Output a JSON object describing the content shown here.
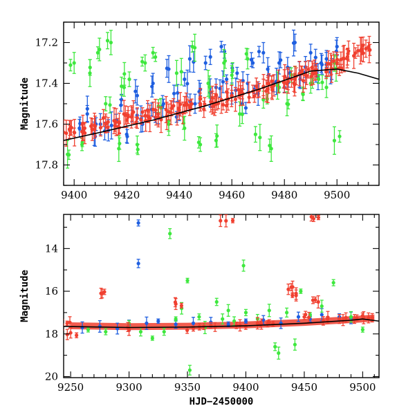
{
  "chart_data": [
    {
      "type": "scatter",
      "panel": "top",
      "xlabel": "",
      "ylabel": "Magnitude",
      "xlim": [
        9396,
        9516
      ],
      "ylim": [
        17.9,
        17.1
      ],
      "y_inverted": true,
      "xticks": [
        9400,
        9420,
        9440,
        9460,
        9480,
        9500
      ],
      "yticks": [
        17.2,
        17.4,
        17.6,
        17.8
      ],
      "series": [
        {
          "name": "blue",
          "color": "#1f5fe0",
          "points": [
            [
              9402,
              17.62
            ],
            [
              9405,
              17.55
            ],
            [
              9408,
              17.66
            ],
            [
              9410,
              17.6
            ],
            [
              9413,
              17.63
            ],
            [
              9416,
              17.58
            ],
            [
              9418,
              17.48
            ],
            [
              9420,
              17.65
            ],
            [
              9422,
              17.56
            ],
            [
              9424,
              17.46
            ],
            [
              9426,
              17.6
            ],
            [
              9428,
              17.53
            ],
            [
              9430,
              17.4
            ],
            [
              9432,
              17.57
            ],
            [
              9434,
              17.5
            ],
            [
              9436,
              17.33
            ],
            [
              9438,
              17.45
            ],
            [
              9440,
              17.55
            ],
            [
              9442,
              17.38
            ],
            [
              9444,
              17.28
            ],
            [
              9446,
              17.5
            ],
            [
              9448,
              17.43
            ],
            [
              9450,
              17.3
            ],
            [
              9452,
              17.47
            ],
            [
              9454,
              17.42
            ],
            [
              9456,
              17.22
            ],
            [
              9458,
              17.38
            ],
            [
              9460,
              17.45
            ],
            [
              9462,
              17.35
            ],
            [
              9464,
              17.5
            ],
            [
              9466,
              17.4
            ],
            [
              9468,
              17.3
            ],
            [
              9470,
              17.45
            ],
            [
              9472,
              17.25
            ],
            [
              9474,
              17.36
            ],
            [
              9476,
              17.4
            ],
            [
              9478,
              17.3
            ],
            [
              9480,
              17.42
            ],
            [
              9482,
              17.35
            ],
            [
              9484,
              17.2
            ],
            [
              9486,
              17.38
            ],
            [
              9488,
              17.32
            ],
            [
              9490,
              17.25
            ],
            [
              9492,
              17.35
            ],
            [
              9494,
              17.3
            ],
            [
              9496,
              17.28
            ],
            [
              9498,
              17.33
            ],
            [
              9500,
              17.22
            ]
          ]
        },
        {
          "name": "green",
          "color": "#3ee83e",
          "points": [
            [
              9398,
              17.75
            ],
            [
              9400,
              17.3
            ],
            [
              9403,
              17.7
            ],
            [
              9406,
              17.35
            ],
            [
              9409,
              17.25
            ],
            [
              9412,
              17.5
            ],
            [
              9414,
              17.2
            ],
            [
              9417,
              17.72
            ],
            [
              9419,
              17.42
            ],
            [
              9421,
              17.38
            ],
            [
              9424,
              17.7
            ],
            [
              9427,
              17.3
            ],
            [
              9430,
              17.25
            ],
            [
              9433,
              17.52
            ],
            [
              9436,
              17.6
            ],
            [
              9439,
              17.35
            ],
            [
              9442,
              17.62
            ],
            [
              9445,
              17.22
            ],
            [
              9448,
              17.7
            ],
            [
              9451,
              17.4
            ],
            [
              9454,
              17.68
            ],
            [
              9457,
              17.3
            ],
            [
              9460,
              17.36
            ],
            [
              9463,
              17.55
            ],
            [
              9466,
              17.28
            ],
            [
              9469,
              17.65
            ],
            [
              9472,
              17.48
            ],
            [
              9475,
              17.72
            ],
            [
              9478,
              17.42
            ],
            [
              9481,
              17.5
            ],
            [
              9484,
              17.36
            ],
            [
              9487,
              17.45
            ],
            [
              9490,
              17.4
            ],
            [
              9493,
              17.38
            ],
            [
              9496,
              17.42
            ],
            [
              9499,
              17.3
            ],
            [
              9501,
              17.66
            ]
          ]
        },
        {
          "name": "red",
          "color": "#f04030",
          "points": [
            [
              9396,
              17.64
            ],
            [
              9400,
              17.64
            ],
            [
              9404,
              17.62
            ],
            [
              9408,
              17.61
            ],
            [
              9412,
              17.6
            ],
            [
              9416,
              17.59
            ],
            [
              9420,
              17.58
            ],
            [
              9424,
              17.57
            ],
            [
              9428,
              17.56
            ],
            [
              9432,
              17.55
            ],
            [
              9436,
              17.54
            ],
            [
              9440,
              17.53
            ],
            [
              9444,
              17.52
            ],
            [
              9448,
              17.5
            ],
            [
              9452,
              17.49
            ],
            [
              9456,
              17.48
            ],
            [
              9460,
              17.46
            ],
            [
              9464,
              17.45
            ],
            [
              9468,
              17.44
            ],
            [
              9472,
              17.42
            ],
            [
              9476,
              17.41
            ],
            [
              9480,
              17.39
            ],
            [
              9484,
              17.38
            ],
            [
              9488,
              17.36
            ],
            [
              9492,
              17.35
            ],
            [
              9496,
              17.33
            ],
            [
              9500,
              17.3
            ],
            [
              9504,
              17.27
            ],
            [
              9508,
              17.24
            ],
            [
              9511,
              17.23
            ]
          ]
        }
      ],
      "fit_curve": {
        "color": "#000000",
        "x": [
          9396,
          9410,
          9430,
          9450,
          9470,
          9490,
          9500,
          9508,
          9516
        ],
        "y": [
          17.68,
          17.64,
          17.58,
          17.51,
          17.43,
          17.34,
          17.33,
          17.35,
          17.38
        ]
      }
    },
    {
      "type": "scatter",
      "panel": "bottom",
      "xlabel": "HJD−2450000",
      "ylabel": "Magnitude",
      "xlim": [
        9244,
        9514
      ],
      "ylim": [
        20.05,
        12.4
      ],
      "y_inverted": true,
      "xticks": [
        9250,
        9300,
        9350,
        9400,
        9450,
        9500
      ],
      "yticks": [
        14,
        16,
        18,
        20
      ],
      "series": [
        {
          "name": "blue",
          "color": "#1f5fe0",
          "points": [
            [
              9260,
              17.7
            ],
            [
              9275,
              17.65
            ],
            [
              9290,
              17.75
            ],
            [
              9300,
              17.6
            ],
            [
              9308,
              12.8
            ],
            [
              9308,
              14.7
            ],
            [
              9315,
              17.5
            ],
            [
              9325,
              17.4
            ],
            [
              9340,
              17.55
            ],
            [
              9355,
              17.5
            ],
            [
              9370,
              17.45
            ],
            [
              9385,
              17.55
            ],
            [
              9400,
              17.4
            ],
            [
              9415,
              17.35
            ],
            [
              9430,
              17.5
            ],
            [
              9445,
              17.2
            ],
            [
              9455,
              17.3
            ],
            [
              9465,
              17.1
            ],
            [
              9480,
              17.2
            ],
            [
              9490,
              17.25
            ]
          ]
        },
        {
          "name": "green",
          "color": "#3ee83e",
          "points": [
            [
              9265,
              17.8
            ],
            [
              9280,
              17.9
            ],
            [
              9300,
              17.5
            ],
            [
              9310,
              17.9
            ],
            [
              9320,
              18.2
            ],
            [
              9330,
              17.9
            ],
            [
              9335,
              13.3
            ],
            [
              9340,
              17.3
            ],
            [
              9345,
              16.8
            ],
            [
              9350,
              15.5
            ],
            [
              9352,
              19.7
            ],
            [
              9360,
              17.2
            ],
            [
              9365,
              17.7
            ],
            [
              9375,
              16.5
            ],
            [
              9380,
              17.3
            ],
            [
              9385,
              16.9
            ],
            [
              9390,
              17.4
            ],
            [
              9398,
              14.8
            ],
            [
              9400,
              17.0
            ],
            [
              9410,
              17.3
            ],
            [
              9420,
              16.9
            ],
            [
              9425,
              18.6
            ],
            [
              9428,
              18.9
            ],
            [
              9435,
              17.0
            ],
            [
              9442,
              18.5
            ],
            [
              9447,
              16.0
            ],
            [
              9455,
              17.1
            ],
            [
              9465,
              16.7
            ],
            [
              9475,
              15.6
            ],
            [
              9490,
              17.2
            ],
            [
              9500,
              17.8
            ]
          ]
        },
        {
          "name": "red",
          "color": "#f04030",
          "points": [
            [
              9247,
              17.5
            ],
            [
              9250,
              17.95
            ],
            [
              9276,
              16.1
            ],
            [
              9300,
              17.8
            ],
            [
              9340,
              16.6
            ],
            [
              9355,
              17.75
            ],
            [
              9370,
              17.6
            ],
            [
              9383,
              12.7
            ],
            [
              9395,
              17.6
            ],
            [
              9410,
              17.5
            ],
            [
              9420,
              17.45
            ],
            [
              9440,
              15.8
            ],
            [
              9443,
              16.2
            ],
            [
              9450,
              17.2
            ],
            [
              9458,
              12.6
            ],
            [
              9462,
              16.5
            ],
            [
              9470,
              17.3
            ],
            [
              9480,
              17.3
            ],
            [
              9495,
              17.25
            ],
            [
              9505,
              17.25
            ]
          ]
        }
      ],
      "fit_curve": {
        "color": "#000000",
        "x": [
          9244,
          9300,
          9350,
          9400,
          9450,
          9490,
          9500,
          9514
        ],
        "y": [
          17.65,
          17.7,
          17.68,
          17.62,
          17.5,
          17.36,
          17.3,
          17.4
        ]
      },
      "dense_band": {
        "color": "#f04030",
        "x": [
          9250,
          9300,
          9350,
          9400,
          9450,
          9500,
          9510
        ],
        "y": [
          17.62,
          17.66,
          17.64,
          17.58,
          17.46,
          17.3,
          17.25
        ]
      }
    }
  ]
}
